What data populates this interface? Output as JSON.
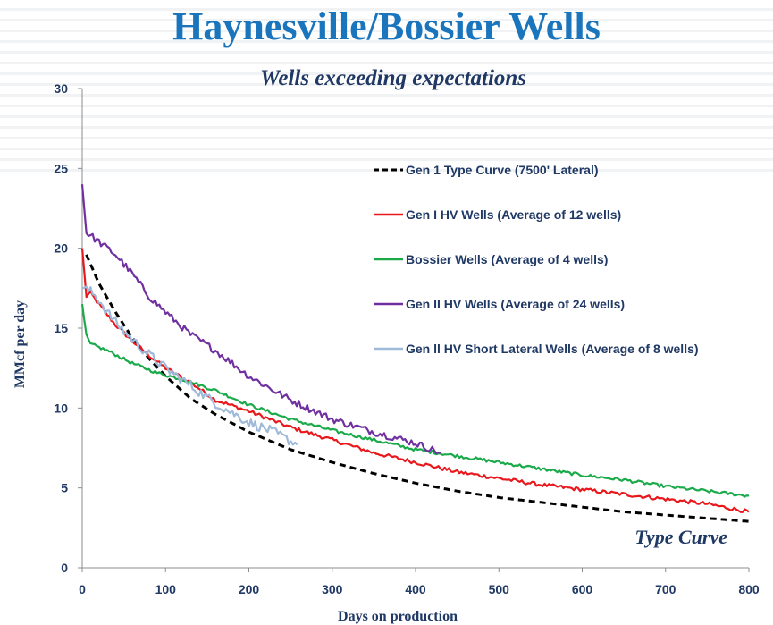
{
  "title": "Haynesville/Bossier Wells",
  "subtitle": "Wells exceeding expectations",
  "chart_data": {
    "type": "line",
    "xlabel": "Days on production",
    "ylabel": "MMcf per day",
    "xlim": [
      0,
      800
    ],
    "ylim": [
      0,
      30
    ],
    "xticks": [
      "0",
      "100",
      "200",
      "300",
      "400",
      "500",
      "600",
      "700",
      "800"
    ],
    "yticks": [
      "0",
      "5",
      "10",
      "15",
      "20",
      "25",
      "30"
    ],
    "grid": false,
    "legend_position": "top-right",
    "annotation": "Type Curve",
    "series": [
      {
        "name": "Gen 1 Type Curve (7500' Lateral)",
        "color": "#000000",
        "dash": true,
        "noise": 0,
        "x": [
          5,
          20,
          40,
          60,
          80,
          100,
          130,
          160,
          200,
          250,
          300,
          350,
          400,
          450,
          500,
          550,
          600,
          650,
          700,
          750,
          800
        ],
        "y": [
          19.6,
          17.8,
          16.0,
          14.4,
          13.1,
          12.0,
          10.6,
          9.6,
          8.5,
          7.4,
          6.6,
          5.9,
          5.3,
          4.8,
          4.4,
          4.1,
          3.8,
          3.5,
          3.3,
          3.1,
          2.9
        ]
      },
      {
        "name": "Gen I HV Wells (Average of 12 wells)",
        "color": "#e8181d",
        "dash": false,
        "noise": 0.12,
        "x": [
          0,
          5,
          10,
          20,
          40,
          60,
          80,
          100,
          130,
          160,
          200,
          250,
          300,
          350,
          400,
          450,
          500,
          550,
          600,
          650,
          700,
          750,
          800
        ],
        "y": [
          20.0,
          17.0,
          17.2,
          16.5,
          15.2,
          14.2,
          13.3,
          12.5,
          11.6,
          10.5,
          9.8,
          8.8,
          8.0,
          7.2,
          6.6,
          6.0,
          5.6,
          5.2,
          4.9,
          4.6,
          4.3,
          4.0,
          3.5
        ]
      },
      {
        "name": "Bossier Wells (Average of 4 wells)",
        "color": "#1aaa4a",
        "dash": false,
        "noise": 0.1,
        "x": [
          0,
          5,
          10,
          30,
          60,
          90,
          120,
          160,
          200,
          250,
          300,
          350,
          400,
          450,
          500,
          550,
          600,
          650,
          700,
          750,
          800
        ],
        "y": [
          16.5,
          14.5,
          14.0,
          13.6,
          12.8,
          12.2,
          11.8,
          11.1,
          10.2,
          9.3,
          8.6,
          8.0,
          7.4,
          7.0,
          6.6,
          6.2,
          5.8,
          5.5,
          5.1,
          4.8,
          4.5
        ]
      },
      {
        "name": "Gen II HV Wells (Average of 24 wells)",
        "color": "#7030a0",
        "dash": false,
        "noise": 0.22,
        "x": [
          0,
          5,
          20,
          40,
          60,
          80,
          100,
          130,
          160,
          200,
          250,
          300,
          350,
          400,
          430
        ],
        "y": [
          24.0,
          21.0,
          20.4,
          19.6,
          18.4,
          17.0,
          16.0,
          14.6,
          13.6,
          12.0,
          10.5,
          9.3,
          8.5,
          7.8,
          7.2
        ]
      },
      {
        "name": "Gen ll HV Short Lateral Wells (Average of 8 wells)",
        "color": "#9fb9d9",
        "dash": false,
        "noise": 0.3,
        "x": [
          0,
          10,
          20,
          30,
          50,
          70,
          100,
          130,
          160,
          200,
          230,
          258
        ],
        "y": [
          17.5,
          17.3,
          16.8,
          16.0,
          14.8,
          13.8,
          12.5,
          11.4,
          10.3,
          9.1,
          8.5,
          7.7
        ]
      }
    ]
  }
}
